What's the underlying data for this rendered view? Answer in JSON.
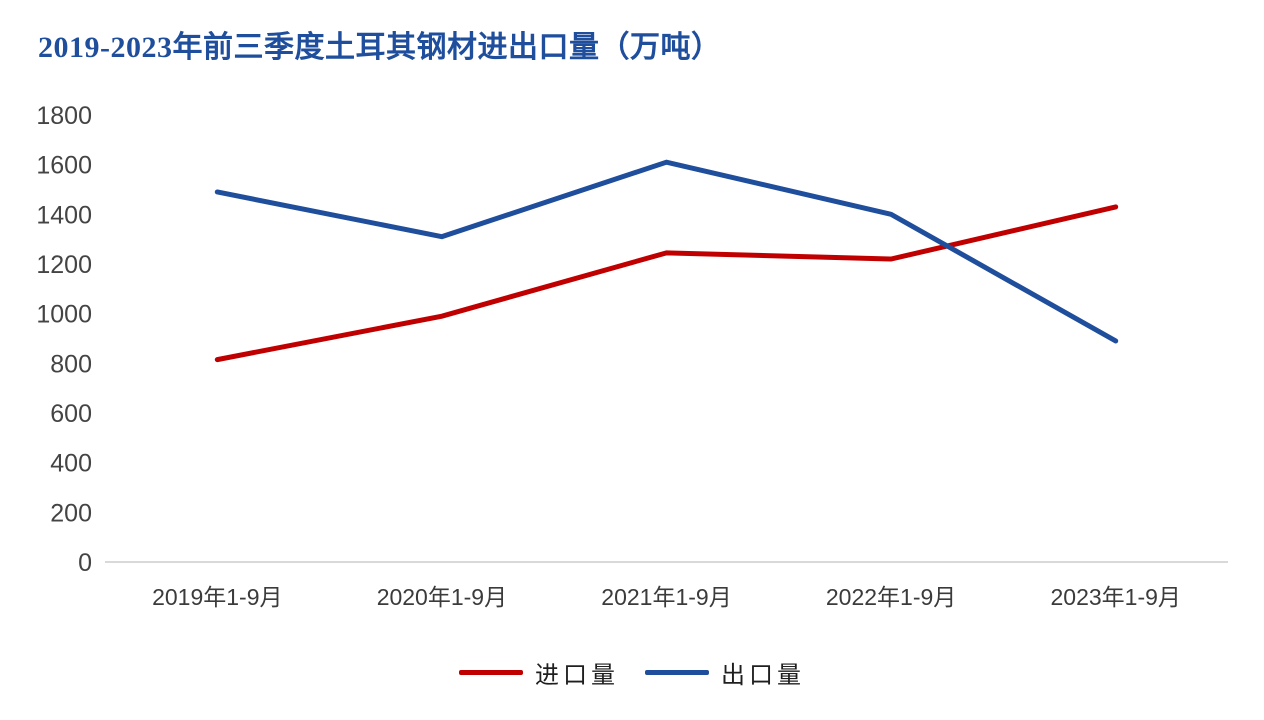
{
  "chart_data": {
    "type": "line",
    "title": "2019-2023年前三季度土耳其钢材进出口量（万吨）",
    "categories": [
      "2019年1-9月",
      "2020年1-9月",
      "2021年1-9月",
      "2022年1-9月",
      "2023年1-9月"
    ],
    "series": [
      {
        "name": "进口量",
        "color": "#c00000",
        "values": [
          815,
          990,
          1245,
          1220,
          1430
        ]
      },
      {
        "name": "出口量",
        "color": "#1f4e9c",
        "values": [
          1490,
          1310,
          1610,
          1400,
          890
        ]
      }
    ],
    "xlabel": "",
    "ylabel": "",
    "ylim": [
      0,
      1800
    ],
    "ytick_step": 200,
    "yticks": [
      0,
      200,
      400,
      600,
      800,
      1000,
      1200,
      1400,
      1600,
      1800
    ],
    "grid": false,
    "legend_position": "bottom",
    "line_width": 5,
    "title_color": "#1f4e9c",
    "axis_line_color": "#d9d9d9",
    "tick_label_color": "#444444"
  }
}
